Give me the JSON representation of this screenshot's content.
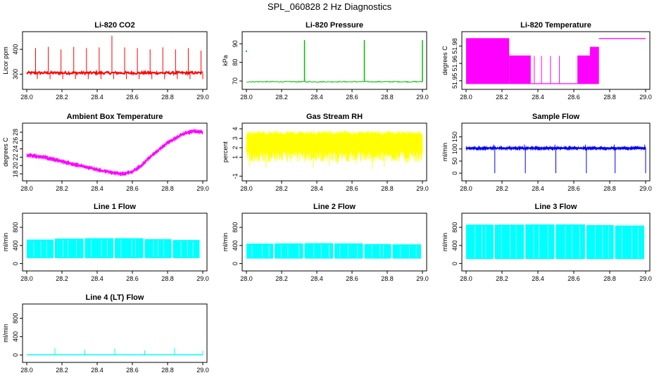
{
  "title": "SPL_060828  2 Hz Diagnostics",
  "chart_data": [
    {
      "id": "co2",
      "type": "line",
      "title": "Li-820 CO2",
      "ylabel": "Licor ppm",
      "color": "#ff0000",
      "xlim": [
        28.0,
        29.0
      ],
      "xticks": [
        "28.0",
        "28.2",
        "28.4",
        "28.6",
        "28.8",
        "29.0"
      ],
      "ylim": [
        250,
        460
      ],
      "yticks": [
        300,
        400
      ],
      "ytick_labels": [
        "300",
        "400"
      ],
      "baseline": 305,
      "noise": 5,
      "spike_values": [
        405,
        410,
        400,
        410,
        405,
        408,
        455,
        408,
        405,
        400,
        408,
        400,
        405,
        395
      ]
    },
    {
      "id": "pressure",
      "type": "line",
      "title": "Li-820 Pressure",
      "ylabel": "kPa",
      "color": "#00c000",
      "xlim": [
        28.0,
        29.0
      ],
      "xticks": [
        "28.0",
        "28.2",
        "28.4",
        "28.6",
        "28.8",
        "29.0"
      ],
      "ylim": [
        67,
        95
      ],
      "yticks": [
        70,
        80,
        90
      ],
      "ytick_labels": [
        "70",
        "80",
        "90"
      ],
      "baseline": 69.6,
      "noise": 0.3,
      "spikes": [
        {
          "x": 28.33,
          "y": 92
        },
        {
          "x": 28.67,
          "y": 92
        },
        {
          "x": 29.0,
          "y": 92
        }
      ],
      "outlier": {
        "x": 28.0,
        "y": 86
      }
    },
    {
      "id": "temp",
      "type": "line",
      "title": "Li-820 Temperature",
      "ylabel": "degrees C",
      "color": "#ff00ff",
      "xlim": [
        28.0,
        29.0
      ],
      "xticks": [
        "28.0",
        "28.2",
        "28.4",
        "28.6",
        "28.8",
        "29.0"
      ],
      "ylim": [
        51.945,
        51.99
      ],
      "yticks": [
        51.95,
        51.965,
        51.98
      ],
      "ytick_labels": [
        "51.95",
        "51.96",
        "51.98"
      ],
      "levels": [
        {
          "x0": 28.0,
          "x1": 28.24,
          "lo": 51.9475,
          "hi": 51.9865
        },
        {
          "x0": 28.24,
          "x1": 28.36,
          "lo": 51.9475,
          "hi": 51.9715
        },
        {
          "x0": 28.36,
          "x1": 28.62,
          "lo": 51.9475,
          "hi": 51.9475
        },
        {
          "x0": 28.62,
          "x1": 28.69,
          "lo": 51.9475,
          "hi": 51.9715
        },
        {
          "x0": 28.69,
          "x1": 28.74,
          "lo": 51.9475,
          "hi": 51.979
        },
        {
          "x0": 28.74,
          "x1": 29.0,
          "lo": 51.9865,
          "hi": 51.9865
        }
      ]
    },
    {
      "id": "box",
      "type": "line",
      "title": "Ambient Box Temperature",
      "ylabel": "degrees C",
      "color": "#ff00ff",
      "xlim": [
        28.0,
        29.0
      ],
      "xticks": [
        "28.0",
        "28.2",
        "28.4",
        "28.6",
        "28.8",
        "29.0"
      ],
      "ylim": [
        17,
        29.5
      ],
      "yticks": [
        18,
        20,
        22,
        24,
        26,
        28
      ],
      "ytick_labels": [
        "18",
        "20",
        "22",
        "24",
        "26",
        "28"
      ],
      "curve_x": [
        28.0,
        28.1,
        28.2,
        28.3,
        28.4,
        28.5,
        28.55,
        28.6,
        28.65,
        28.7,
        28.8,
        28.9,
        28.95,
        29.0
      ],
      "curve_y": [
        22.5,
        22.0,
        21.0,
        20.0,
        19.0,
        18.2,
        18.0,
        18.5,
        20.0,
        22.0,
        25.5,
        27.8,
        28.3,
        28.0
      ],
      "noise": 0.6
    },
    {
      "id": "rh",
      "type": "line",
      "title": "Gas Stream RH",
      "ylabel": "percent",
      "color": "#ffff00",
      "xlim": [
        28.0,
        29.0
      ],
      "xticks": [
        "28.0",
        "28.2",
        "28.4",
        "28.6",
        "28.8",
        "29.0"
      ],
      "ylim": [
        -1.2,
        4.3
      ],
      "yticks": [
        -1,
        1,
        2,
        3,
        4
      ],
      "ytick_labels": [
        "-1",
        "1",
        "2",
        "3",
        "4"
      ],
      "upper": [
        3.4,
        3.8
      ],
      "lower": [
        0.5,
        1.6
      ]
    },
    {
      "id": "sample",
      "type": "line",
      "title": "Sample Flow",
      "ylabel": "ml/min",
      "color": "#0000ff",
      "xlim": [
        28.0,
        29.0
      ],
      "xticks": [
        "28.0",
        "28.2",
        "28.4",
        "28.6",
        "28.8",
        "29.0"
      ],
      "ylim": [
        -20,
        195
      ],
      "yticks": [
        0,
        50,
        100,
        150
      ],
      "ytick_labels": [
        "0",
        "50",
        "100",
        "150"
      ],
      "baseline": 103,
      "noise": 4,
      "dips": [
        28.16,
        28.33,
        28.5,
        28.67,
        28.83,
        29.0
      ],
      "dip_value": 0,
      "spike_value": 118
    },
    {
      "id": "line1",
      "type": "line",
      "title": "Line 1 Flow",
      "ylabel": "ml/min",
      "color": "#00ffff",
      "xlim": [
        28.0,
        29.0
      ],
      "xticks": [
        "28.0",
        "28.2",
        "28.4",
        "28.6",
        "28.8",
        "29.0"
      ],
      "ylim": [
        -100,
        1050
      ],
      "yticks": [
        0,
        400,
        800
      ],
      "ytick_labels": [
        "0",
        "400",
        "800"
      ],
      "segments": [
        {
          "x0": 28.0,
          "x1": 28.16,
          "hi": 530
        },
        {
          "x0": 28.16,
          "x1": 28.33,
          "hi": 550
        },
        {
          "x0": 28.33,
          "x1": 28.5,
          "hi": 560
        },
        {
          "x0": 28.5,
          "x1": 28.67,
          "hi": 560
        },
        {
          "x0": 28.67,
          "x1": 28.83,
          "hi": 540
        },
        {
          "x0": 28.83,
          "x1": 28.99,
          "hi": 520
        }
      ],
      "low": 120
    },
    {
      "id": "line2",
      "type": "line",
      "title": "Line 2 Flow",
      "ylabel": "ml/min",
      "color": "#00ffff",
      "xlim": [
        28.0,
        29.0
      ],
      "xticks": [
        "28.0",
        "28.2",
        "28.4",
        "28.6",
        "28.8",
        "29.0"
      ],
      "ylim": [
        -100,
        1050
      ],
      "yticks": [
        0,
        400,
        800
      ],
      "ytick_labels": [
        "0",
        "400",
        "800"
      ],
      "segments": [
        {
          "x0": 28.0,
          "x1": 28.16,
          "hi": 440
        },
        {
          "x0": 28.16,
          "x1": 28.33,
          "hi": 445
        },
        {
          "x0": 28.33,
          "x1": 28.5,
          "hi": 450
        },
        {
          "x0": 28.5,
          "x1": 28.67,
          "hi": 445
        },
        {
          "x0": 28.67,
          "x1": 28.83,
          "hi": 430
        },
        {
          "x0": 28.83,
          "x1": 29.0,
          "hi": 425
        }
      ],
      "low": 110
    },
    {
      "id": "line3",
      "type": "line",
      "title": "Line 3 Flow",
      "ylabel": "ml/min",
      "color": "#00ffff",
      "xlim": [
        28.0,
        29.0
      ],
      "xticks": [
        "28.0",
        "28.2",
        "28.4",
        "28.6",
        "28.8",
        "29.0"
      ],
      "ylim": [
        -100,
        1050
      ],
      "yticks": [
        0,
        400,
        800
      ],
      "ytick_labels": [
        "0",
        "400",
        "800"
      ],
      "segments": [
        {
          "x0": 28.0,
          "x1": 28.16,
          "hi": 860
        },
        {
          "x0": 28.16,
          "x1": 28.33,
          "hi": 860
        },
        {
          "x0": 28.33,
          "x1": 28.5,
          "hi": 865
        },
        {
          "x0": 28.5,
          "x1": 28.67,
          "hi": 865
        },
        {
          "x0": 28.67,
          "x1": 28.83,
          "hi": 850
        },
        {
          "x0": 28.83,
          "x1": 29.0,
          "hi": 840
        }
      ],
      "low": 100
    },
    {
      "id": "line4",
      "type": "line",
      "title": "Line 4 (LT) Flow",
      "ylabel": "ml/min",
      "color": "#00ffff",
      "xlim": [
        28.0,
        29.0
      ],
      "xticks": [
        "28.0",
        "28.2",
        "28.4",
        "28.6",
        "28.8",
        "29.0"
      ],
      "ylim": [
        -100,
        1050
      ],
      "yticks": [
        0,
        400,
        800
      ],
      "ytick_labels": [
        "0",
        "400",
        "800"
      ],
      "baseline": 5,
      "spikes": [
        {
          "x": 28.16,
          "y": 150
        },
        {
          "x": 28.33,
          "y": 110
        },
        {
          "x": 28.5,
          "y": 140
        },
        {
          "x": 28.67,
          "y": 100
        },
        {
          "x": 28.84,
          "y": 155
        },
        {
          "x": 29.0,
          "y": 90
        }
      ]
    }
  ]
}
